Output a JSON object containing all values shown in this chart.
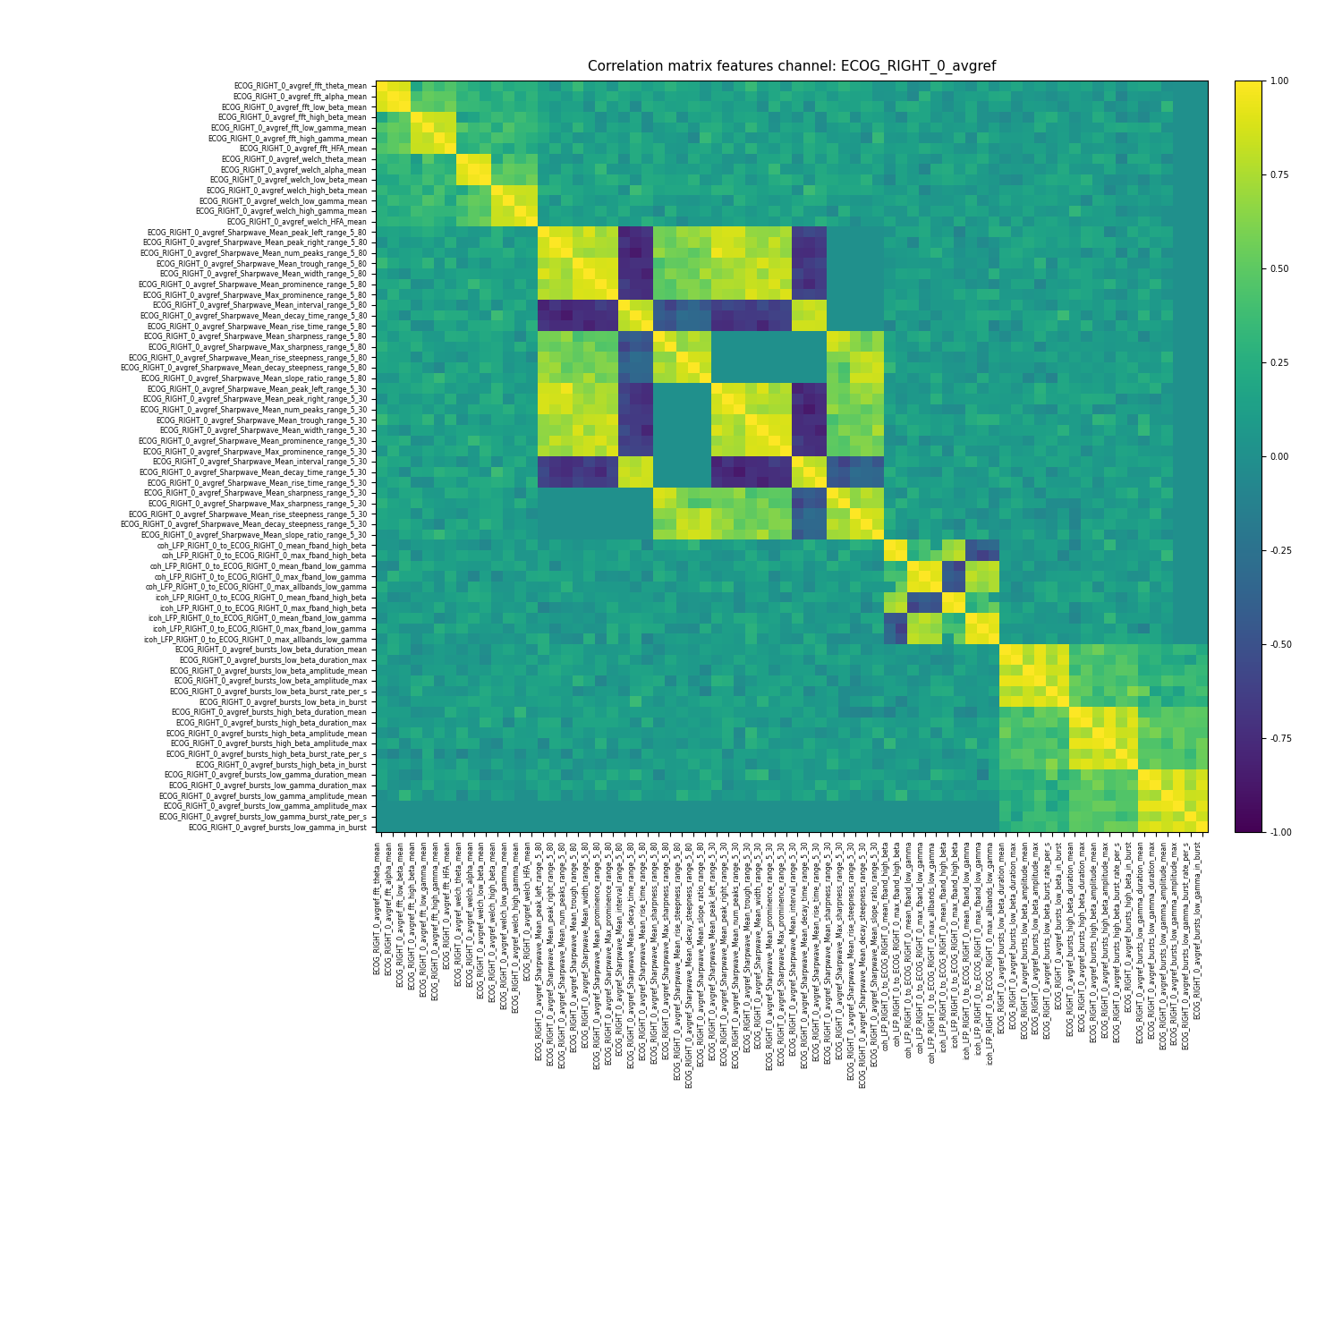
{
  "title": "Correlation matrix features channel: ECOG_RIGHT_0_avgref",
  "labels": [
    "ECOG_RIGHT_0_avgref_fft_theta_mean",
    "ECOG_RIGHT_0_avgref_fft_alpha_mean",
    "ECOG_RIGHT_0_avgref_fft_low_beta_mean",
    "ECOG_RIGHT_0_avgref_fft_high_beta_mean",
    "ECOG_RIGHT_0_avgref_fft_low_gamma_mean",
    "ECOG_RIGHT_0_avgref_fft_high_gamma_mean",
    "ECOG_RIGHT_0_avgref_fft_HFA_mean",
    "ECOG_RIGHT_0_avgref_welch_theta_mean",
    "ECOG_RIGHT_0_avgref_welch_alpha_mean",
    "ECOG_RIGHT_0_avgref_welch_low_beta_mean",
    "ECOG_RIGHT_0_avgref_welch_high_beta_mean",
    "ECOG_RIGHT_0_avgref_welch_low_gamma_mean",
    "ECOG_RIGHT_0_avgref_welch_high_gamma_mean",
    "ECOG_RIGHT_0_avgref_welch_HFA_mean",
    "ECOG_RIGHT_0_avgref_Sharpwave_Mean_peak_left_range_5_80",
    "ECOG_RIGHT_0_avgref_Sharpwave_Mean_peak_right_range_5_80",
    "ECOG_RIGHT_0_avgref_Sharpwave_Mean_num_peaks_range_5_80",
    "ECOG_RIGHT_0_avgref_Sharpwave_Mean_trough_range_5_80",
    "ECOG_RIGHT_0_avgref_Sharpwave_Mean_width_range_5_80",
    "ECOG_RIGHT_0_avgref_Sharpwave_Mean_prominence_range_5_80",
    "ECOG_RIGHT_0_avgref_Sharpwave_Max_prominence_range_5_80",
    "ECOG_RIGHT_0_avgref_Sharpwave_Mean_interval_range_5_80",
    "ECOG_RIGHT_0_avgref_Sharpwave_Mean_decay_time_range_5_80",
    "ECOG_RIGHT_0_avgref_Sharpwave_Mean_rise_time_range_5_80",
    "ECOG_RIGHT_0_avgref_Sharpwave_Mean_sharpness_range_5_80",
    "ECOG_RIGHT_0_avgref_Sharpwave_Max_sharpness_range_5_80",
    "ECOG_RIGHT_0_avgref_Sharpwave_Mean_rise_steepness_range_5_80",
    "ECOG_RIGHT_0_avgref_Sharpwave_Mean_decay_steepness_range_5_80",
    "ECOG_RIGHT_0_avgref_Sharpwave_Mean_slope_ratio_range_5_80",
    "ECOG_RIGHT_0_avgref_Sharpwave_Mean_peak_left_range_5_30",
    "ECOG_RIGHT_0_avgref_Sharpwave_Mean_peak_right_range_5_30",
    "ECOG_RIGHT_0_avgref_Sharpwave_Mean_num_peaks_range_5_30",
    "ECOG_RIGHT_0_avgref_Sharpwave_Mean_trough_range_5_30",
    "ECOG_RIGHT_0_avgref_Sharpwave_Mean_width_range_5_30",
    "ECOG_RIGHT_0_avgref_Sharpwave_Mean_prominence_range_5_30",
    "ECOG_RIGHT_0_avgref_Sharpwave_Max_prominence_range_5_30",
    "ECOG_RIGHT_0_avgref_Sharpwave_Mean_interval_range_5_30",
    "ECOG_RIGHT_0_avgref_Sharpwave_Mean_decay_time_range_5_30",
    "ECOG_RIGHT_0_avgref_Sharpwave_Mean_rise_time_range_5_30",
    "ECOG_RIGHT_0_avgref_Sharpwave_Mean_sharpness_range_5_30",
    "ECOG_RIGHT_0_avgref_Sharpwave_Max_sharpness_range_5_30",
    "ECOG_RIGHT_0_avgref_Sharpwave_Mean_rise_steepness_range_5_30",
    "ECOG_RIGHT_0_avgref_Sharpwave_Mean_decay_steepness_range_5_30",
    "ECOG_RIGHT_0_avgref_Sharpwave_Mean_slope_ratio_range_5_30",
    "coh_LFP_RIGHT_0_to_ECOG_RIGHT_0_mean_fband_high_beta",
    "coh_LFP_RIGHT_0_to_ECOG_RIGHT_0_max_fband_high_beta",
    "coh_LFP_RIGHT_0_to_ECOG_RIGHT_0_mean_fband_low_gamma",
    "coh_LFP_RIGHT_0_to_ECOG_RIGHT_0_max_fband_low_gamma",
    "coh_LFP_RIGHT_0_to_ECOG_RIGHT_0_max_allbands_low_gamma",
    "icoh_LFP_RIGHT_0_to_ECOG_RIGHT_0_mean_fband_high_beta",
    "icoh_LFP_RIGHT_0_to_ECOG_RIGHT_0_max_fband_high_beta",
    "icoh_LFP_RIGHT_0_to_ECOG_RIGHT_0_mean_fband_low_gamma",
    "icoh_LFP_RIGHT_0_to_ECOG_RIGHT_0_max_fband_low_gamma",
    "icoh_LFP_RIGHT_0_to_ECOG_RIGHT_0_max_allbands_low_gamma",
    "ECOG_RIGHT_0_avgref_bursts_low_beta_duration_mean",
    "ECOG_RIGHT_0_avgref_bursts_low_beta_duration_max",
    "ECOG_RIGHT_0_avgref_bursts_low_beta_amplitude_mean",
    "ECOG_RIGHT_0_avgref_bursts_low_beta_amplitude_max",
    "ECOG_RIGHT_0_avgref_bursts_low_beta_burst_rate_per_s",
    "ECOG_RIGHT_0_avgref_bursts_low_beta_in_burst",
    "ECOG_RIGHT_0_avgref_bursts_high_beta_duration_mean",
    "ECOG_RIGHT_0_avgref_bursts_high_beta_duration_max",
    "ECOG_RIGHT_0_avgref_bursts_high_beta_amplitude_mean",
    "ECOG_RIGHT_0_avgref_bursts_high_beta_amplitude_max",
    "ECOG_RIGHT_0_avgref_bursts_high_beta_burst_rate_per_s",
    "ECOG_RIGHT_0_avgref_bursts_high_beta_in_burst",
    "ECOG_RIGHT_0_avgref_bursts_low_gamma_duration_mean",
    "ECOG_RIGHT_0_avgref_bursts_low_gamma_duration_max",
    "ECOG_RIGHT_0_avgref_bursts_low_gamma_amplitude_mean",
    "ECOG_RIGHT_0_avgref_bursts_low_gamma_amplitude_max",
    "ECOG_RIGHT_0_avgref_bursts_low_gamma_burst_rate_per_s",
    "ECOG_RIGHT_0_avgref_bursts_low_gamma_in_burst"
  ],
  "colormap": "viridis",
  "vmin": -1.0,
  "vmax": 1.0,
  "figsize": [
    15,
    15
  ],
  "title_fontsize": 11,
  "tick_fontsize": 5.5,
  "colorbar_ticks": [
    -1.0,
    -0.75,
    -0.5,
    -0.25,
    0.0,
    0.25,
    0.5,
    0.75,
    1.0
  ],
  "colorbar_ticklabels": [
    "-1.00",
    "-0.75",
    "-0.50",
    "-0.25",
    "0.00",
    "0.25",
    "0.50",
    "0.75",
    "1.00"
  ]
}
